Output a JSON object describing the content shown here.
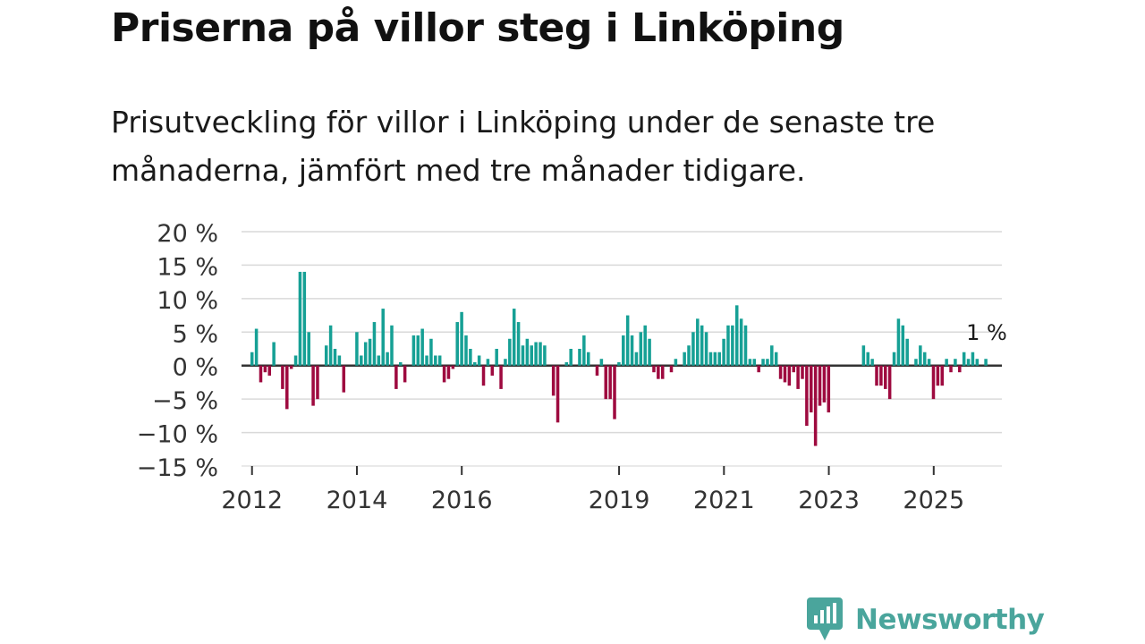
{
  "title": "Priserna på villor steg i Linköping",
  "subtitle": "Prisutveckling för villor i Linköping under de senaste tre månaderna, jämfört med tre månader tidigare.",
  "logo": {
    "text": "Newsworthy",
    "icon": "newsworthy-logo-icon"
  },
  "colors": {
    "positive": "#16a095",
    "negative": "#9e0a3f",
    "grid": "#d9d9d9",
    "zero": "#333333"
  },
  "chart_data": {
    "type": "bar",
    "title": "Priserna på villor steg i Linköping",
    "subtitle": "Prisutveckling för villor i Linköping under de senaste tre månaderna, jämfört med tre månader tidigare.",
    "xlabel": "",
    "ylabel": "",
    "ylim": [
      -15,
      20
    ],
    "y_ticks": [
      20,
      15,
      10,
      5,
      0,
      -5,
      -10,
      -15
    ],
    "y_tick_labels": [
      "20 %",
      "15 %",
      "10 %",
      "5 %",
      "0 %",
      "−5 %",
      "−10 %",
      "−15 %"
    ],
    "x_ticks": [
      2012,
      2014,
      2016,
      2019,
      2021,
      2023,
      2025
    ],
    "x_tick_labels": [
      "2012",
      "2014",
      "2016",
      "2019",
      "2021",
      "2023",
      "2025"
    ],
    "x_start": 2011.8,
    "x_end": 2026.3,
    "period_start": 2012.0,
    "period_step": 0.0833,
    "unit": "%",
    "last_value_label": "1 %",
    "values": [
      2.0,
      5.5,
      -2.5,
      -1.0,
      -1.5,
      3.5,
      0.0,
      -3.5,
      -6.5,
      -0.5,
      1.5,
      14.0,
      14.0,
      5.0,
      -6.0,
      -5.0,
      0.0,
      3.0,
      6.0,
      2.5,
      1.5,
      -4.0,
      0.0,
      0.0,
      5.0,
      1.5,
      3.5,
      4.0,
      6.5,
      1.5,
      8.5,
      2.0,
      6.0,
      -3.5,
      0.5,
      -2.5,
      0.0,
      4.5,
      4.5,
      5.5,
      1.5,
      4.0,
      1.5,
      1.5,
      -2.5,
      -2.0,
      -0.5,
      6.5,
      8.0,
      4.5,
      2.5,
      0.5,
      1.5,
      -3.0,
      1.0,
      -1.5,
      2.5,
      -3.5,
      1.0,
      4.0,
      8.5,
      6.5,
      3.0,
      4.0,
      3.0,
      3.5,
      3.5,
      3.0,
      0.0,
      -4.5,
      -8.5,
      0.0,
      0.5,
      2.5,
      0.0,
      2.5,
      4.5,
      2.0,
      0.0,
      -1.5,
      1.0,
      -5.0,
      -5.0,
      -8.0,
      0.5,
      4.5,
      7.5,
      4.5,
      2.0,
      5.0,
      6.0,
      4.0,
      -1.0,
      -2.0,
      -2.0,
      0.0,
      -1.0,
      1.0,
      0.0,
      2.0,
      3.0,
      5.0,
      7.0,
      6.0,
      5.0,
      2.0,
      2.0,
      2.0,
      4.0,
      6.0,
      6.0,
      9.0,
      7.0,
      6.0,
      1.0,
      1.0,
      -1.0,
      1.0,
      1.0,
      3.0,
      2.0,
      -2.0,
      -2.5,
      -3.0,
      -1.0,
      -3.5,
      -2.0,
      -9.0,
      -7.0,
      -12.0,
      -6.0,
      -5.5,
      -7.0,
      0.0,
      0.0,
      0.0,
      0.0,
      0.0,
      0.0,
      0.0,
      3.0,
      2.0,
      1.0,
      -3.0,
      -3.0,
      -3.5,
      -5.0,
      2.0,
      7.0,
      6.0,
      4.0,
      0.0,
      1.0,
      3.0,
      2.0,
      1.0,
      -5.0,
      -3.0,
      -3.0,
      1.0,
      -1.0,
      1.0,
      -1.0,
      2.0,
      1.0,
      2.0,
      1.0,
      0.0,
      1.0
    ]
  }
}
